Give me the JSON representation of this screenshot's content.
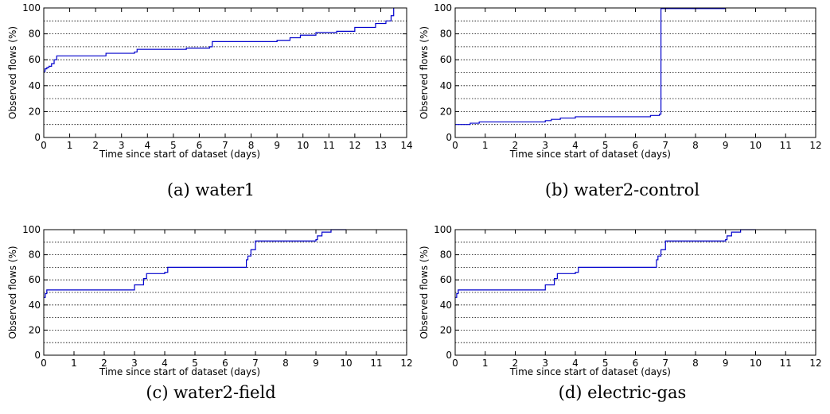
{
  "chart_data": [
    {
      "type": "line",
      "caption": "(a) water1",
      "xlabel": "Time since start of dataset (days)",
      "ylabel": "Observed flows (%)",
      "xlim": [
        0,
        14
      ],
      "ylim": [
        0,
        100
      ],
      "xticks": [
        0,
        1,
        2,
        3,
        4,
        5,
        6,
        7,
        8,
        9,
        10,
        11,
        12,
        13,
        14
      ],
      "yticks": [
        0,
        20,
        40,
        60,
        80,
        100
      ],
      "grid": "horizontal dotted every 10",
      "series": [
        {
          "color": "#0000cc",
          "step": true,
          "x": [
            0,
            0.05,
            0.12,
            0.2,
            0.3,
            0.4,
            0.5,
            2.3,
            2.4,
            3.5,
            3.6,
            5.4,
            5.5,
            6.4,
            6.5,
            9.0,
            9.5,
            9.9,
            10.5,
            11.3,
            12.0,
            12.8,
            13.2,
            13.4,
            13.5
          ],
          "y": [
            51,
            53,
            54,
            55,
            57,
            60,
            63,
            63,
            65,
            66,
            68,
            68,
            69,
            70,
            74,
            75,
            77,
            79,
            81,
            82,
            85,
            88,
            90,
            94,
            100
          ]
        }
      ]
    },
    {
      "type": "line",
      "caption": "(b) water2-control",
      "xlabel": "Time since start of dataset (days)",
      "ylabel": "Observed flows (%)",
      "xlim": [
        0,
        12
      ],
      "ylim": [
        0,
        100
      ],
      "xticks": [
        0,
        1,
        2,
        3,
        4,
        5,
        6,
        7,
        8,
        9,
        10,
        11,
        12
      ],
      "yticks": [
        0,
        20,
        40,
        60,
        80,
        100
      ],
      "grid": "horizontal dotted every 10",
      "series": [
        {
          "color": "#0000cc",
          "step": true,
          "x": [
            0,
            0.5,
            0.8,
            3.0,
            3.2,
            3.5,
            4.0,
            6.5,
            6.8,
            6.85,
            9.0
          ],
          "y": [
            10,
            11,
            12,
            13,
            14,
            15,
            16,
            17,
            18,
            99.5,
            99.5
          ]
        }
      ]
    },
    {
      "type": "line",
      "caption": "(c) water2-field",
      "xlabel": "Time since start of dataset (days)",
      "ylabel": "Observed flows (%)",
      "xlim": [
        0,
        12
      ],
      "ylim": [
        0,
        100
      ],
      "xticks": [
        0,
        1,
        2,
        3,
        4,
        5,
        6,
        7,
        8,
        9,
        10,
        11,
        12
      ],
      "yticks": [
        0,
        20,
        40,
        60,
        80,
        100
      ],
      "grid": "horizontal dotted every 10",
      "series": [
        {
          "color": "#0000cc",
          "step": true,
          "x": [
            0,
            0.05,
            0.1,
            3.0,
            3.3,
            3.4,
            4.0,
            4.1,
            6.7,
            6.75,
            6.85,
            7.0,
            9.0,
            9.05,
            9.2,
            9.5,
            10.0
          ],
          "y": [
            46,
            49,
            52,
            56,
            61,
            65,
            66,
            70,
            76,
            79,
            84,
            91,
            92,
            95,
            98,
            100,
            100
          ]
        }
      ]
    },
    {
      "type": "line",
      "caption": "(d) electric-gas",
      "xlabel": "Time since start of dataset (days)",
      "ylabel": "Observed flows (%)",
      "xlim": [
        0,
        12
      ],
      "ylim": [
        0,
        100
      ],
      "xticks": [
        0,
        1,
        2,
        3,
        4,
        5,
        6,
        7,
        8,
        9,
        10,
        11,
        12
      ],
      "yticks": [
        0,
        20,
        40,
        60,
        80,
        100
      ],
      "grid": "horizontal dotted every 10",
      "series": [
        {
          "color": "#0000cc",
          "step": true,
          "x": [
            0,
            0.05,
            0.1,
            3.0,
            3.3,
            3.4,
            4.0,
            4.1,
            6.7,
            6.75,
            6.85,
            7.0,
            9.0,
            9.05,
            9.2,
            9.5,
            10.0
          ],
          "y": [
            46,
            49,
            52,
            56,
            61,
            65,
            66,
            70,
            76,
            79,
            84,
            91,
            92,
            95,
            98,
            100,
            100
          ]
        }
      ]
    }
  ]
}
